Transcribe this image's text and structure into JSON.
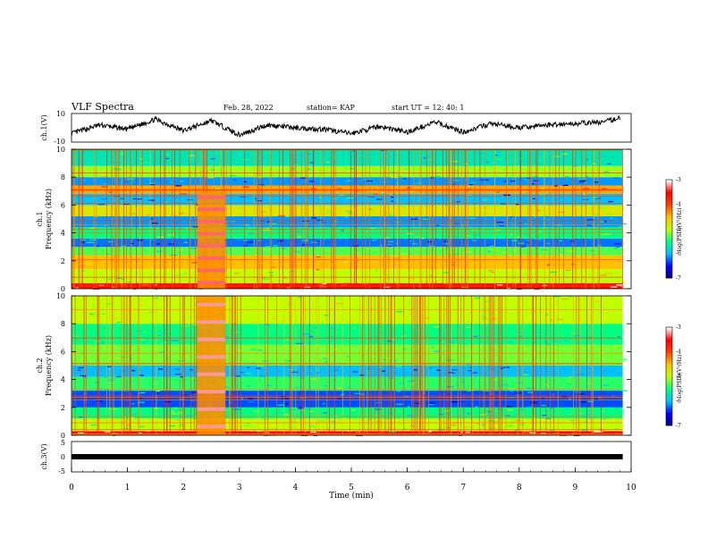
{
  "header": {
    "title": "VLF Spectra",
    "date": "Feb. 28, 2022",
    "station": "station= KAP",
    "start": "start  UT =   12: 40: 1"
  },
  "colorbar": {
    "label": "log(PSD)(V²/Hz)",
    "ticks": [
      "-3",
      "-4",
      "-5",
      "-6",
      "-7"
    ],
    "colors": [
      "#000080",
      "#0000ff",
      "#00c0ff",
      "#00ff80",
      "#c0ff00",
      "#ffc000",
      "#ff4000",
      "#ff0000",
      "#ffffff"
    ]
  },
  "chart_data": [
    {
      "type": "line",
      "panel": "ch1-voltage",
      "ylabel": "ch.1(V)",
      "ylim": [
        -10,
        10
      ],
      "yticks": [
        "10",
        "-10"
      ],
      "xlim": [
        0,
        10
      ],
      "x": [
        0,
        0.5,
        1,
        1.5,
        2,
        2.5,
        3,
        3.5,
        4,
        4.5,
        5,
        5.5,
        6,
        6.5,
        7,
        7.5,
        8,
        8.5,
        9,
        9.5,
        9.8
      ],
      "y": [
        -4,
        2,
        -1,
        6,
        -2,
        5,
        -5,
        2,
        0,
        -1,
        -4,
        1,
        -3,
        4,
        -3,
        3,
        0,
        2,
        3,
        4,
        7
      ]
    },
    {
      "type": "heatmap",
      "panel": "ch1-spectrogram",
      "ylabel": "ch.1\nFrequency (kHz)",
      "ylim": [
        0,
        10
      ],
      "yticks": [
        "0",
        "2",
        "4",
        "6",
        "8",
        "10"
      ],
      "xlim": [
        0,
        10
      ],
      "zlim": [
        -7,
        -3
      ],
      "zlabel": "log(PSD)(V²/Hz)",
      "bands": [
        {
          "f": [
            0.0,
            0.4
          ],
          "level": -3.6
        },
        {
          "f": [
            0.4,
            1.4
          ],
          "level": -5.0
        },
        {
          "f": [
            1.4,
            2.4
          ],
          "level": -4.5
        },
        {
          "f": [
            2.4,
            3.0
          ],
          "level": -5.3
        },
        {
          "f": [
            3.0,
            3.6
          ],
          "level": -6.2
        },
        {
          "f": [
            3.6,
            4.4
          ],
          "level": -5.5
        },
        {
          "f": [
            4.4,
            5.2
          ],
          "level": -6.1
        },
        {
          "f": [
            5.2,
            6.0
          ],
          "level": -4.8
        },
        {
          "f": [
            6.0,
            6.8
          ],
          "level": -6.0
        },
        {
          "f": [
            6.8,
            7.4
          ],
          "level": -4.4
        },
        {
          "f": [
            7.4,
            8.0
          ],
          "level": -6.1
        },
        {
          "f": [
            8.0,
            8.8
          ],
          "level": -5.1
        },
        {
          "f": [
            8.8,
            10.0
          ],
          "level": -5.7
        }
      ],
      "burst": {
        "t": [
          2.25,
          2.75
        ],
        "f": [
          0.0,
          7.0
        ],
        "level": -3.3
      },
      "end_time": 9.85
    },
    {
      "type": "heatmap",
      "panel": "ch2-spectrogram",
      "ylabel": "ch.2\nFrequency (kHz)",
      "ylim": [
        0,
        10
      ],
      "yticks": [
        "0",
        "2",
        "4",
        "6",
        "8",
        "10"
      ],
      "xlim": [
        0,
        10
      ],
      "zlim": [
        -7,
        -3
      ],
      "zlabel": "log(PSD)(V²/Hz)",
      "bands": [
        {
          "f": [
            0.0,
            0.3
          ],
          "level": -3.5
        },
        {
          "f": [
            0.3,
            1.2
          ],
          "level": -5.0
        },
        {
          "f": [
            1.2,
            2.0
          ],
          "level": -5.5
        },
        {
          "f": [
            2.0,
            3.2
          ],
          "level": -6.3
        },
        {
          "f": [
            3.2,
            4.2
          ],
          "level": -5.4
        },
        {
          "f": [
            4.2,
            5.0
          ],
          "level": -6.0
        },
        {
          "f": [
            5.0,
            6.5
          ],
          "level": -5.2
        },
        {
          "f": [
            6.5,
            8.0
          ],
          "level": -5.5
        },
        {
          "f": [
            8.0,
            10.0
          ],
          "level": -5.0
        }
      ],
      "burst": {
        "t": [
          2.25,
          2.75
        ],
        "f": [
          0.0,
          10.0
        ],
        "level": -3.2
      },
      "end_time": 9.85
    },
    {
      "type": "line",
      "panel": "ch3-voltage",
      "ylabel": "ch.3(V)",
      "ylim": [
        -5,
        5
      ],
      "yticks": [
        "5",
        "0",
        "-5"
      ],
      "xlim": [
        0,
        10
      ],
      "x": [
        0,
        9.85
      ],
      "y": [
        0,
        0
      ],
      "xlabel": "Time (min)",
      "xticks": [
        "0",
        "1",
        "2",
        "3",
        "4",
        "5",
        "6",
        "7",
        "8",
        "9",
        "10"
      ]
    }
  ]
}
